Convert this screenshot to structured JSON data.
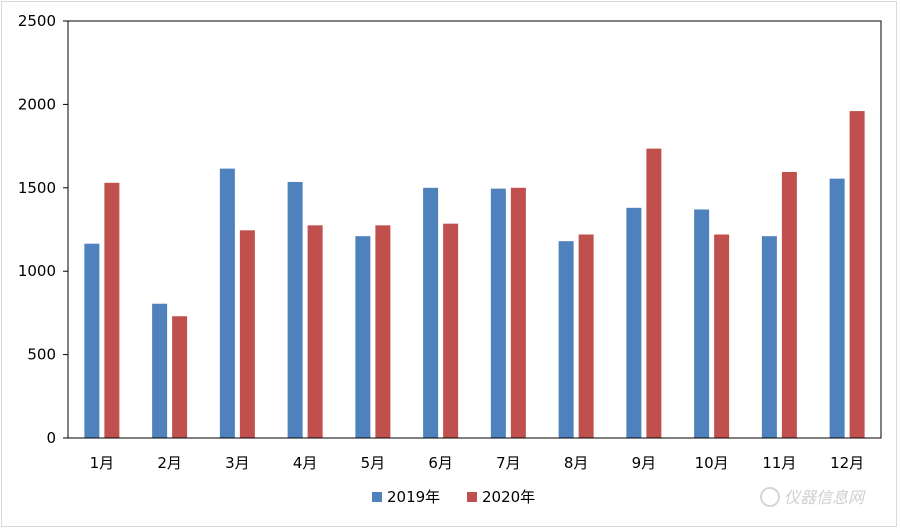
{
  "chart_data": {
    "type": "bar",
    "categories": [
      "1月",
      "2月",
      "3月",
      "4月",
      "5月",
      "6月",
      "7月",
      "8月",
      "9月",
      "10月",
      "11月",
      "12月"
    ],
    "series": [
      {
        "name": "2019年",
        "values": [
          1165,
          805,
          1615,
          1535,
          1210,
          1500,
          1495,
          1180,
          1380,
          1370,
          1210,
          1555
        ],
        "color": "#4f81bd"
      },
      {
        "name": "2020年",
        "values": [
          1530,
          730,
          1245,
          1275,
          1275,
          1285,
          1500,
          1220,
          1735,
          1220,
          1595,
          1960
        ],
        "color": "#c0504d"
      }
    ],
    "title": "",
    "xlabel": "",
    "ylabel": "",
    "ylim": [
      0,
      2500
    ],
    "yticks": [
      0,
      500,
      1000,
      1500,
      2000,
      2500
    ],
    "grid": false,
    "legend_position": "bottom"
  },
  "watermark": {
    "text": "仪器信息网"
  }
}
